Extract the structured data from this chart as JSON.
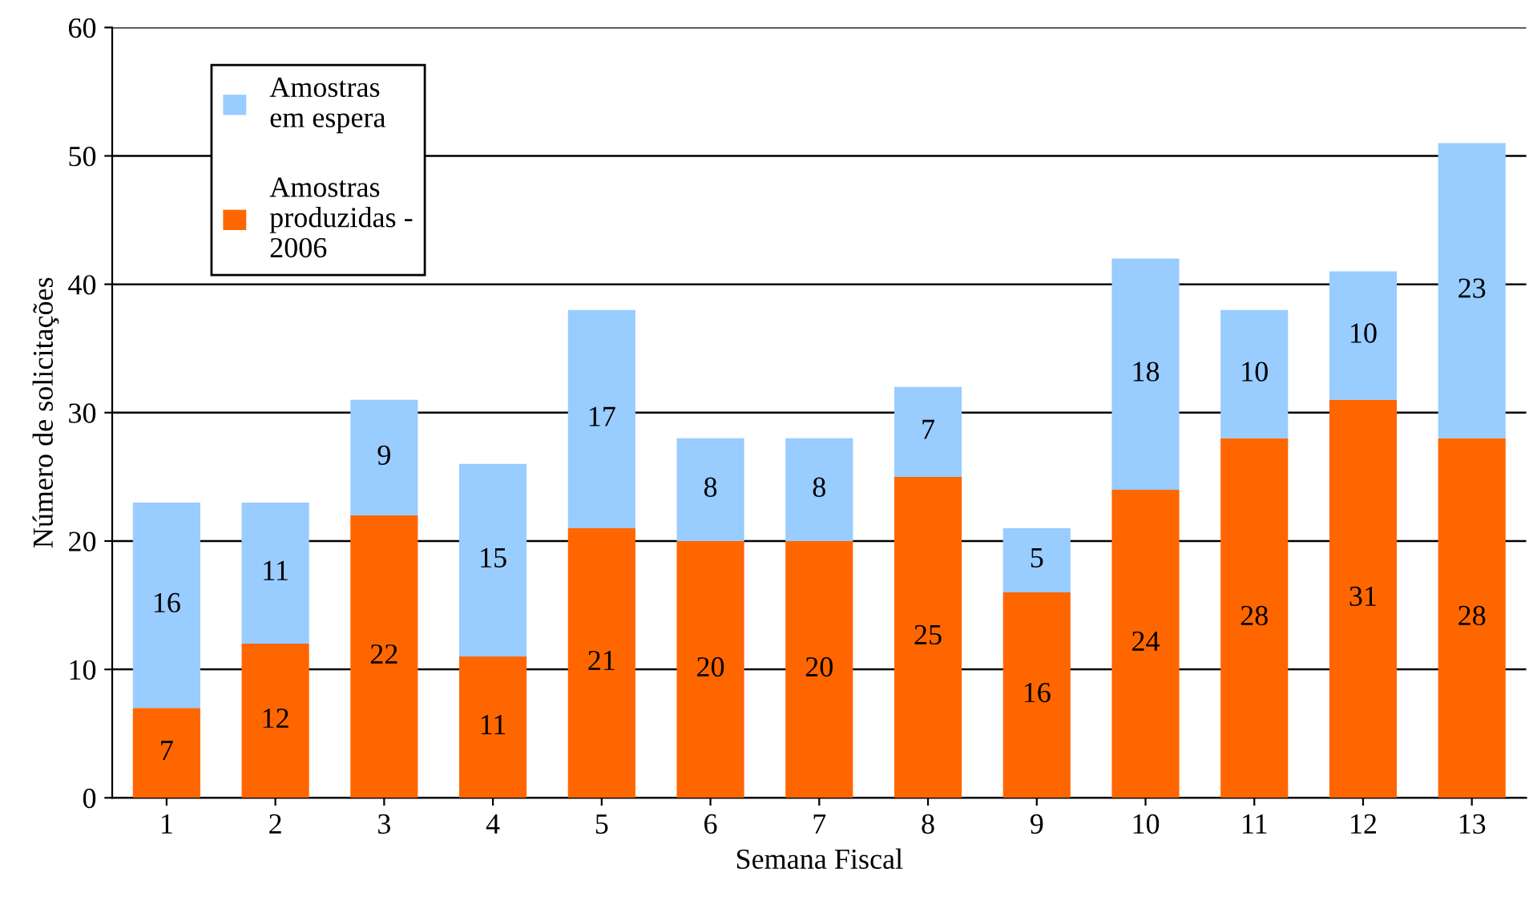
{
  "chart_data": {
    "type": "bar",
    "stacked": true,
    "xlabel": "Semana Fiscal",
    "ylabel": "Número de solicitações",
    "categories": [
      "1",
      "2",
      "3",
      "4",
      "5",
      "6",
      "7",
      "8",
      "9",
      "10",
      "11",
      "12",
      "13"
    ],
    "series": [
      {
        "name": "Amostras\nproduzidas -\n2006",
        "color": "#ff6600",
        "values": [
          7,
          12,
          22,
          11,
          21,
          20,
          20,
          25,
          16,
          24,
          28,
          31,
          28
        ]
      },
      {
        "name": "Amostras\nem espera",
        "color": "#99ccff",
        "values": [
          16,
          11,
          9,
          15,
          17,
          8,
          8,
          7,
          5,
          18,
          10,
          10,
          23
        ]
      }
    ],
    "ylim": [
      0,
      60
    ],
    "yticks": [
      0,
      10,
      20,
      30,
      40,
      50,
      60
    ],
    "grid": "y",
    "legend": "top left",
    "data_labels": true
  }
}
